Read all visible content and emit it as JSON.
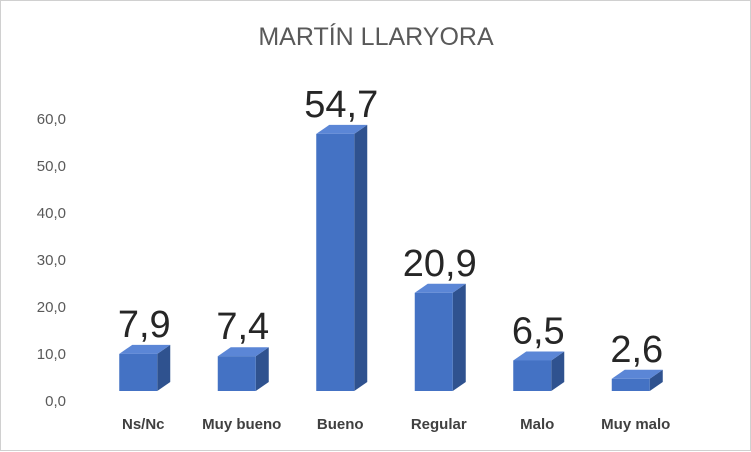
{
  "chart_data": {
    "type": "bar",
    "title": "MARTÍN LLARYORA",
    "categories": [
      "Ns/Nc",
      "Muy bueno",
      "Bueno",
      "Regular",
      "Malo",
      "Muy malo"
    ],
    "values": [
      7.9,
      7.4,
      54.7,
      20.9,
      6.5,
      2.6
    ],
    "data_labels": [
      "7,9",
      "7,4",
      "54,7",
      "20,9",
      "6,5",
      "2,6"
    ],
    "y_ticks": [
      "0,0",
      "10,0",
      "20,0",
      "30,0",
      "40,0",
      "50,0",
      "60,0"
    ],
    "ylim": [
      0,
      60
    ],
    "grid": false,
    "legend": "none",
    "style": "3d-column",
    "colors": {
      "front": "#4472C4",
      "side": "#2F528F",
      "top": "#5B86D6"
    }
  }
}
